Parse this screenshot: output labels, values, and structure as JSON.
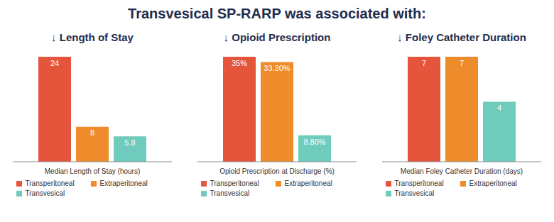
{
  "title": "Transvesical SP-RARP was associated with:",
  "chart_data": [
    {
      "type": "bar",
      "title": "↓ Length of Stay",
      "xlabel": "Median Length of Stay (hours)",
      "categories": [
        null
      ],
      "series": [
        {
          "name": "Transperitoneal",
          "color": "#e4553b",
          "values": [
            24
          ]
        },
        {
          "name": "Extraperitoneal",
          "color": "#ee8b2b",
          "values": [
            8
          ]
        },
        {
          "name": "Transvesical",
          "color": "#6fcbbb",
          "values": [
            5.8
          ]
        }
      ],
      "data_labels": true,
      "tick_labels": false,
      "legend": "bottom"
    },
    {
      "type": "bar",
      "title": "↓ Opioid Prescription",
      "xlabel": "Opioid Prescription at Discharge (%)",
      "categories": [
        null
      ],
      "series": [
        {
          "name": "Transperitoneal",
          "color": "#e4553b",
          "values": [
            35
          ],
          "value_labels": [
            "35%"
          ]
        },
        {
          "name": "Extraperitoneal",
          "color": "#ee8b2b",
          "values": [
            33.2
          ],
          "value_labels": [
            "33.20%"
          ]
        },
        {
          "name": "Transvesical",
          "color": "#6fcbbb",
          "values": [
            8.8
          ],
          "value_labels": [
            "8.80%"
          ]
        }
      ],
      "data_labels": true,
      "tick_labels": false,
      "legend": "bottom"
    },
    {
      "type": "bar",
      "title": "↓ Foley Catheter Duration",
      "xlabel": "Median Foley Catheter Duration (days)",
      "categories": [
        null
      ],
      "series": [
        {
          "name": "Transperitoneal",
          "color": "#e4553b",
          "values": [
            7
          ]
        },
        {
          "name": "Extraperitoneal",
          "color": "#ee8b2b",
          "values": [
            7
          ]
        },
        {
          "name": "Transvesical",
          "color": "#6fcbbb",
          "values": [
            4
          ]
        }
      ],
      "data_labels": true,
      "tick_labels": false,
      "legend": "bottom"
    }
  ]
}
